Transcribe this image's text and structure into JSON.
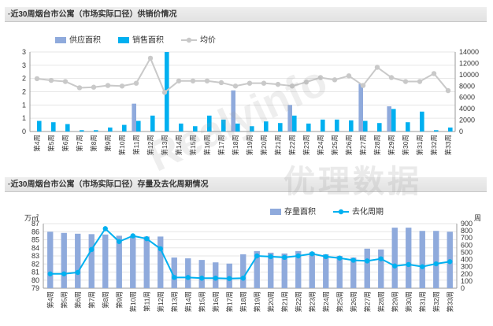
{
  "watermark": {
    "latin": "Realyinfo",
    "cn": "优理数据"
  },
  "chart_data": [
    {
      "type": "bar+line",
      "title": "·近30周烟台市公寓（市场实际口径）供销价情况",
      "categories": [
        "第4周",
        "第5周",
        "第6周",
        "第7周",
        "第8周",
        "第9周",
        "第10周",
        "第11周",
        "第12周",
        "第13周",
        "第14周",
        "第15周",
        "第16周",
        "第17周",
        "第18周",
        "第19周",
        "第20周",
        "第21周",
        "第22周",
        "第23周",
        "第24周",
        "第25周",
        "第26周",
        "第27周",
        "第28周",
        "第29周",
        "第30周",
        "第31周",
        "第32周",
        "第33周"
      ],
      "left_axis": {
        "range": [
          0,
          3
        ],
        "ticks": [
          "0",
          "1",
          "1",
          "2",
          "2",
          "3",
          "3"
        ]
      },
      "right_axis": {
        "range": [
          0,
          14000
        ],
        "ticks": [
          "0",
          "2000",
          "4000",
          "6000",
          "8000",
          "10000",
          "12000",
          "14000"
        ]
      },
      "series": [
        {
          "name": "供应面积",
          "kind": "bar",
          "axis": "left",
          "color": "#8faadc",
          "values": [
            0,
            0,
            0,
            0,
            0,
            0,
            0,
            1.05,
            0,
            0,
            0,
            0,
            0,
            0,
            1.55,
            0,
            0,
            0,
            1.0,
            0,
            0,
            0,
            0,
            1.8,
            0,
            0.95,
            0,
            0,
            0,
            0
          ]
        },
        {
          "name": "销售面积",
          "kind": "bar",
          "axis": "left",
          "color": "#00b0f0",
          "values": [
            0.4,
            0.35,
            0.28,
            0.05,
            0.05,
            0.15,
            0.25,
            0.4,
            0.6,
            3.05,
            0.3,
            0.2,
            0.6,
            0.45,
            0.3,
            0.2,
            0.38,
            0.32,
            0.6,
            0.3,
            0.45,
            0.45,
            0.42,
            0.4,
            0.32,
            0.85,
            0.35,
            0.75,
            0.05,
            0.15
          ]
        },
        {
          "name": "均价",
          "kind": "line",
          "axis": "right",
          "color": "#c9c9c9",
          "values": [
            9300,
            9000,
            8800,
            7700,
            7800,
            8100,
            8000,
            8500,
            12900,
            6900,
            8900,
            8900,
            8900,
            8600,
            8000,
            8500,
            8500,
            8300,
            8000,
            8700,
            9500,
            9100,
            9800,
            8100,
            11300,
            9500,
            8800,
            8800,
            10200,
            7200
          ]
        }
      ]
    },
    {
      "type": "bar+line",
      "title": "·近30周烟台市公寓（市场实际口径）存量及去化周期情况",
      "categories": [
        "第4周",
        "第5周",
        "第6周",
        "第7周",
        "第8周",
        "第9周",
        "第10周",
        "第11周",
        "第12周",
        "第13周",
        "第14周",
        "第15周",
        "第16周",
        "第17周",
        "第18周",
        "第19周",
        "第20周",
        "第21周",
        "第22周",
        "第23周",
        "第24周",
        "第25周",
        "第26周",
        "第27周",
        "第28周",
        "第29周",
        "第30周",
        "第31周",
        "第32周",
        "第33周"
      ],
      "left_axis": {
        "label": "万㎡",
        "range": [
          79,
          87
        ],
        "ticks": [
          "79",
          "80",
          "81",
          "82",
          "83",
          "84",
          "85",
          "86",
          "87"
        ]
      },
      "right_axis": {
        "label": "周",
        "range": [
          0,
          900
        ],
        "ticks": [
          "0",
          "100",
          "200",
          "300",
          "400",
          "500",
          "600",
          "700",
          "800",
          "900"
        ]
      },
      "series": [
        {
          "name": "存量面积",
          "kind": "bar",
          "axis": "left",
          "color": "#8faadc",
          "values": [
            86.0,
            85.85,
            85.75,
            85.7,
            85.65,
            85.5,
            85.45,
            85.4,
            85.4,
            82.8,
            82.7,
            82.5,
            82.2,
            82.05,
            83.2,
            83.6,
            83.4,
            83.3,
            83.6,
            83.45,
            83.2,
            83.0,
            82.8,
            83.9,
            83.8,
            86.5,
            86.5,
            86.1,
            86.1,
            86.0
          ]
        },
        {
          "name": "去化周期",
          "kind": "line",
          "axis": "right",
          "color": "#00b0f0",
          "values": [
            200,
            200,
            220,
            540,
            830,
            650,
            730,
            690,
            550,
            150,
            150,
            140,
            140,
            135,
            140,
            450,
            440,
            430,
            450,
            480,
            440,
            420,
            390,
            380,
            410,
            310,
            330,
            300,
            340,
            370
          ]
        }
      ]
    }
  ]
}
